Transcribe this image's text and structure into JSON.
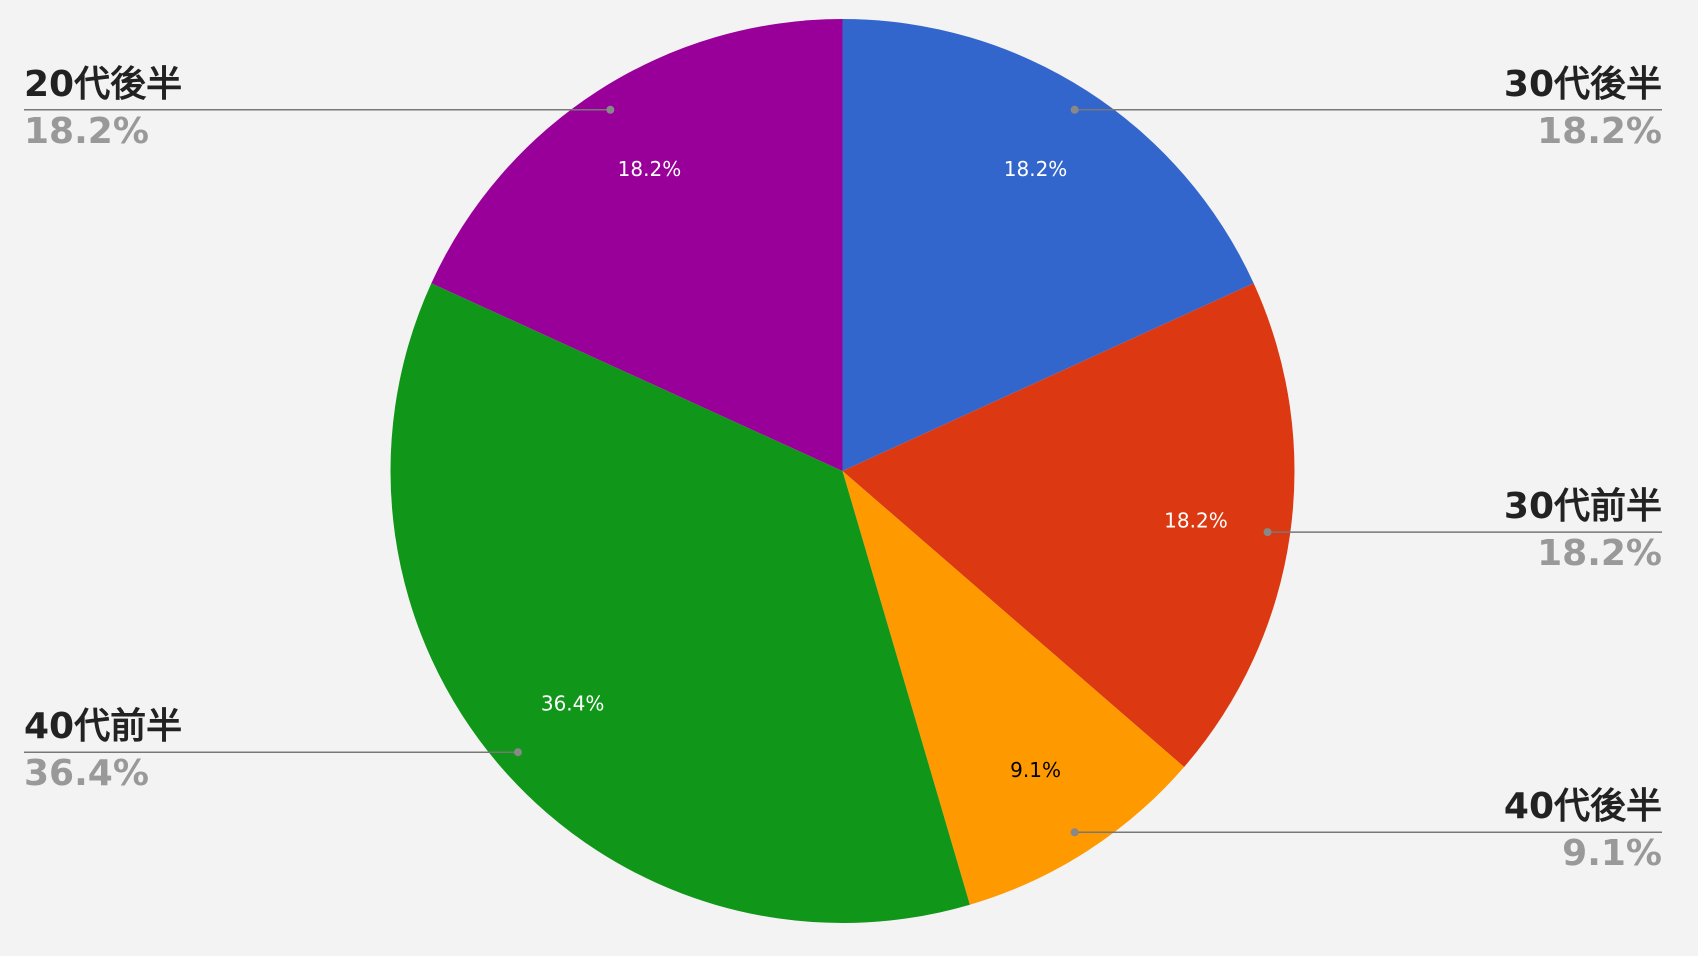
{
  "chart_data": {
    "type": "pie",
    "categories": [
      "30代後半",
      "30代前半",
      "40代後半",
      "40代前半",
      "20代後半"
    ],
    "values": [
      18.2,
      18.2,
      9.1,
      36.4,
      18.2
    ],
    "value_labels": [
      "18.2%",
      "18.2%",
      "9.1%",
      "36.4%",
      "18.2%"
    ],
    "colors": [
      "#3366cc",
      "#dc3912",
      "#ff9900",
      "#109618",
      "#990099"
    ]
  }
}
